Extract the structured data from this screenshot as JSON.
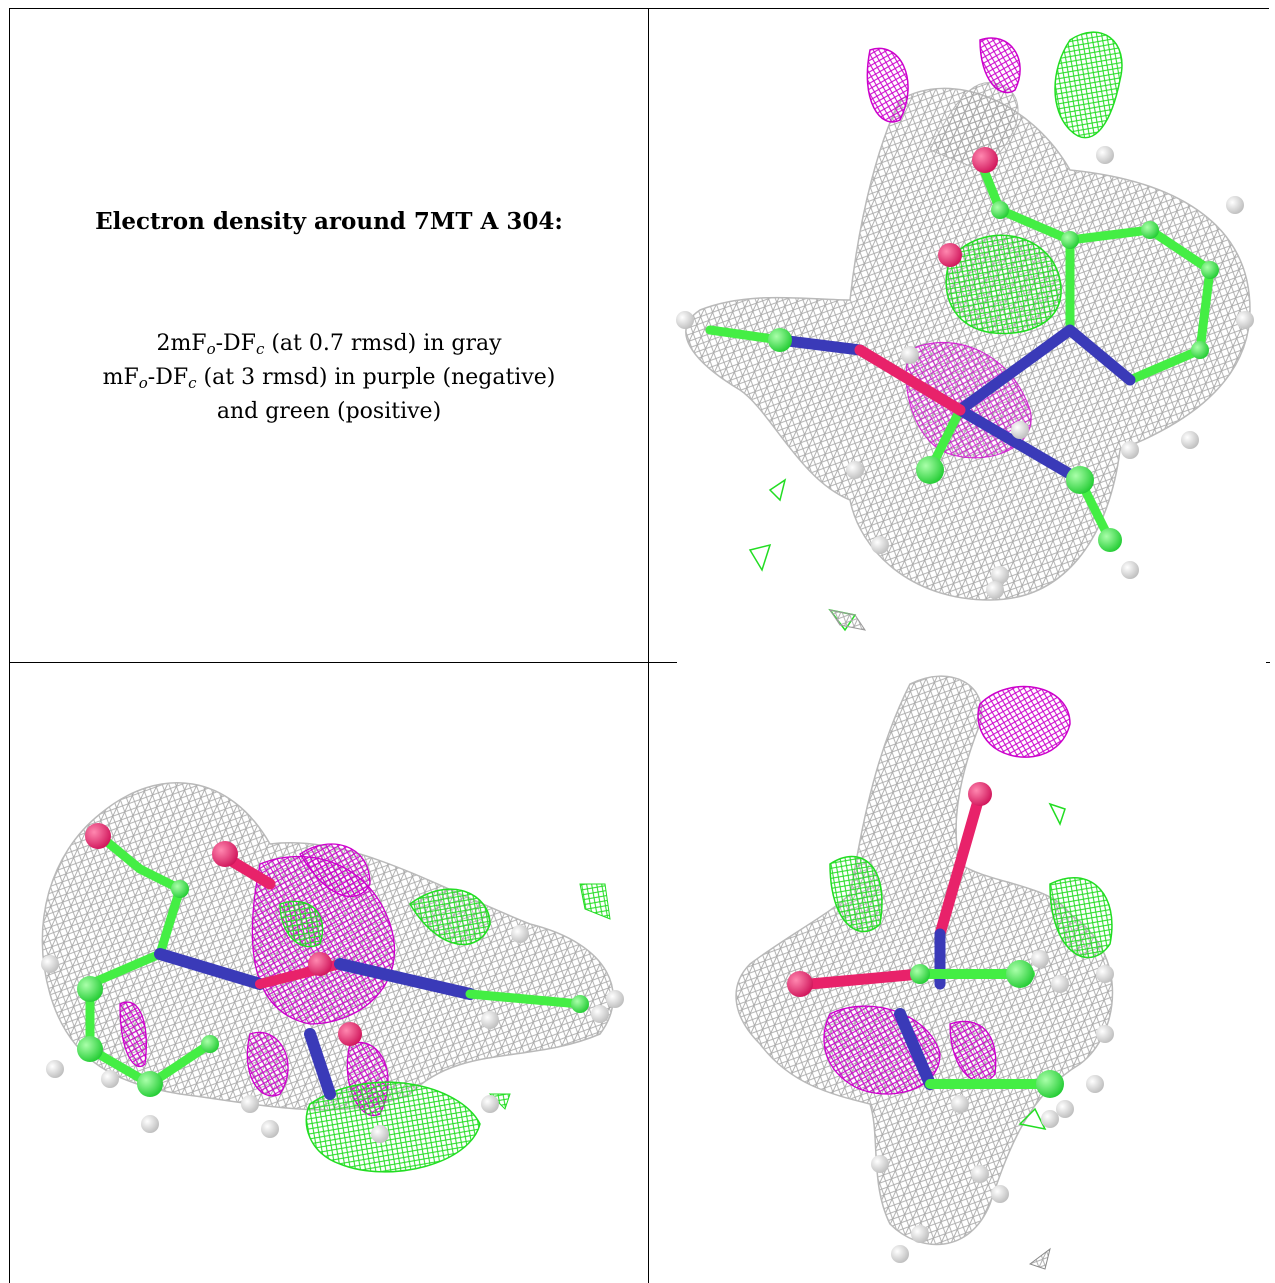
{
  "caption": {
    "title": "Electron density around 7MT A 304:",
    "line1_a": "2mF",
    "line1_sub1": "o",
    "line1_b": "-DF",
    "line1_sub2": "c",
    "line1_c": " (at 0.7 rmsd) in gray",
    "line2_a": "mF",
    "line2_sub1": "o",
    "line2_b": "-DF",
    "line2_sub2": "c",
    "line2_c": " (at 3 rmsd) in purple (negative)",
    "line3": "and green (positive)"
  },
  "colors": {
    "mesh_gray": "#b4b4b4",
    "mesh_purple": "#cc00cc",
    "mesh_green": "#33ee33",
    "carbon": "#44ee44",
    "oxygen": "#e8226a",
    "nitrogen": "#3a3ab8",
    "hydrogen": "#e6e6e6"
  },
  "panels": [
    {
      "name": "view-top-right",
      "icon": "molecular-density-render"
    },
    {
      "name": "view-bottom-left",
      "icon": "molecular-density-render"
    },
    {
      "name": "view-bottom-right",
      "icon": "molecular-density-render"
    }
  ]
}
